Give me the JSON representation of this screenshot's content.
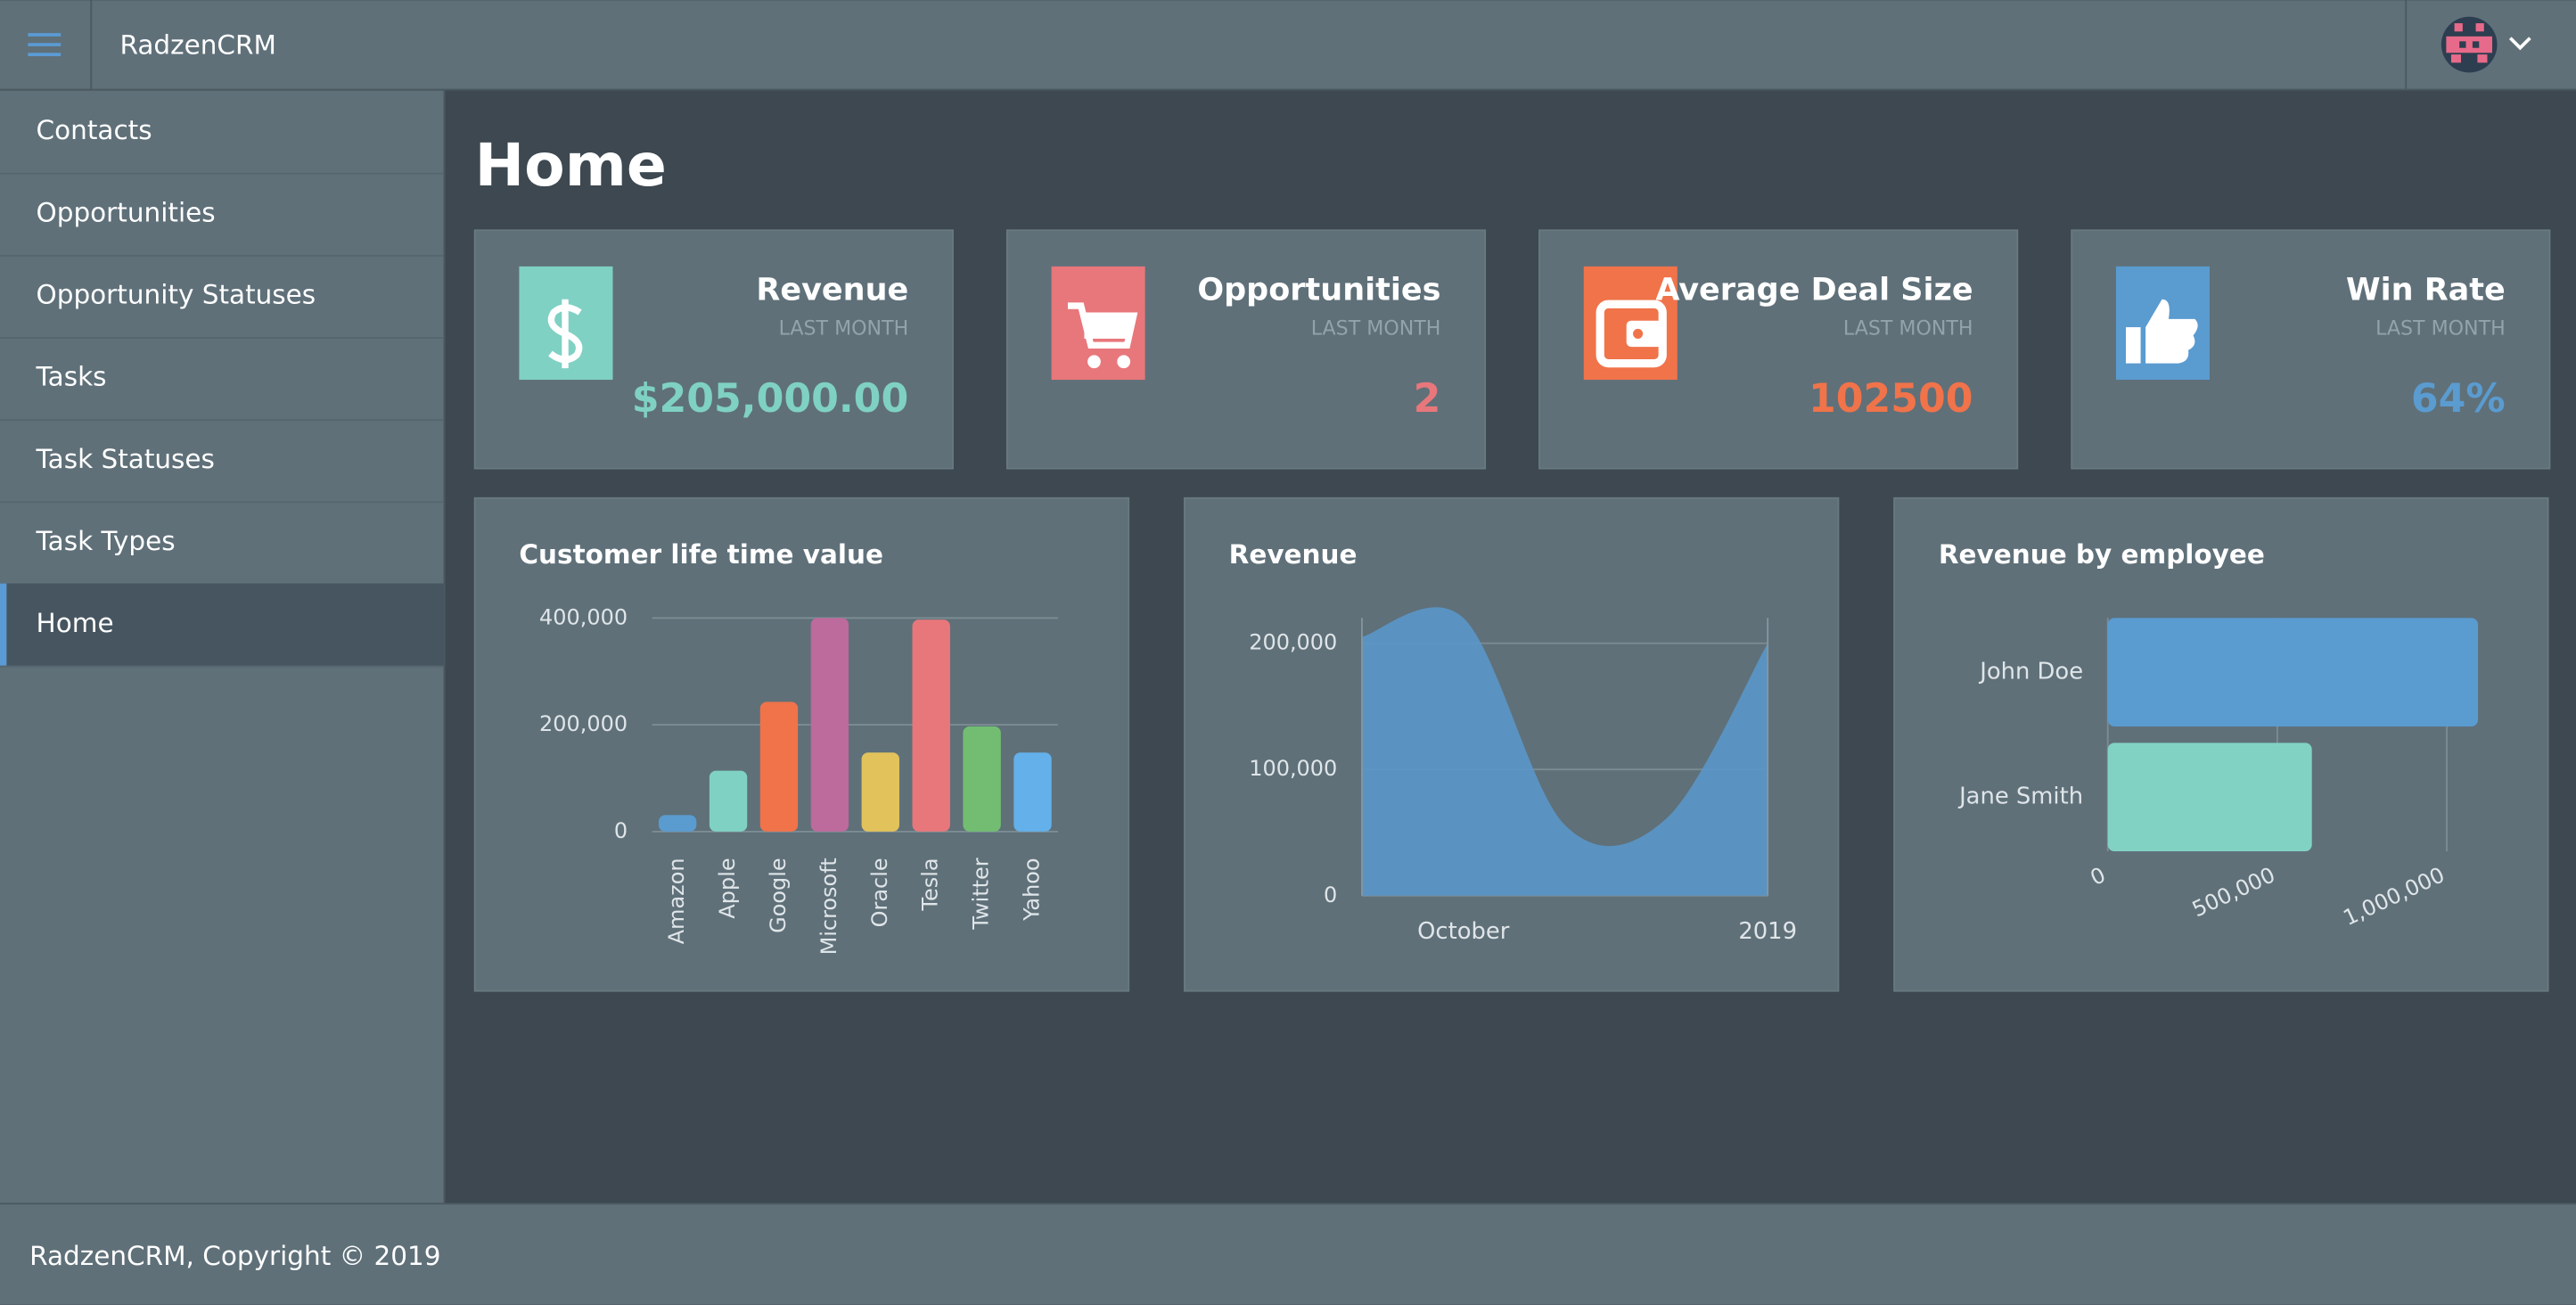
{
  "header": {
    "brand": "RadzenCRM"
  },
  "nav": [
    {
      "label": "Contacts"
    },
    {
      "label": "Opportunities"
    },
    {
      "label": "Opportunity Statuses"
    },
    {
      "label": "Tasks"
    },
    {
      "label": "Task Statuses"
    },
    {
      "label": "Task Types"
    },
    {
      "label": "Home",
      "active": true
    }
  ],
  "page_title": "Home",
  "cards": [
    {
      "title": "Revenue",
      "subtitle": "LAST MONTH",
      "value": "$205,000.00",
      "color": "#7fd1c3"
    },
    {
      "title": "Opportunities",
      "subtitle": "LAST MONTH",
      "value": "2",
      "color": "#e8777b"
    },
    {
      "title": "Average Deal Size",
      "subtitle": "LAST MONTH",
      "value": "102500",
      "color": "#f0734a"
    },
    {
      "title": "Win Rate",
      "subtitle": "LAST MONTH",
      "value": "64%",
      "color": "#5a9bd0"
    }
  ],
  "charts": [
    {
      "type": "bar",
      "title": "Customer life time value",
      "categories": [
        "Amazon",
        "Apple",
        "Google",
        "Microsoft",
        "Oracle",
        "Tesla",
        "Twitter",
        "Yahoo"
      ],
      "values": [
        31000,
        114000,
        243000,
        400000,
        148000,
        397000,
        197000,
        148000
      ],
      "colors": [
        "#5a9bd0",
        "#7fd1c3",
        "#f0734a",
        "#bd6a9c",
        "#e2c25b",
        "#e8777b",
        "#72bd72",
        "#63b0ea"
      ],
      "ylim": [
        0,
        400000
      ],
      "yticks": [
        0,
        {
          "value": 200000,
          "label": "200,000"
        },
        {
          "value": 400000,
          "label": "400,000"
        }
      ],
      "grid": true
    },
    {
      "type": "area",
      "title": "Revenue",
      "categories": [
        null,
        "October",
        null,
        null,
        "2019"
      ],
      "values": [
        205000,
        220000,
        56000,
        61000,
        200000
      ],
      "color": "#5a96c8",
      "ylim": [
        0,
        220000
      ],
      "yticks": [
        0,
        {
          "value": 100000,
          "label": "100,000"
        },
        {
          "value": 200000,
          "label": "200,000"
        }
      ],
      "grid": true
    },
    {
      "type": "hbar",
      "title": "Revenue by employee",
      "categories": [
        "John Doe",
        "Jane Smith"
      ],
      "values": [
        1092000,
        602000
      ],
      "colors": [
        "#5a9bd0",
        "#82d2c4"
      ],
      "xlim": [
        0,
        1100000
      ],
      "xticks": [
        0,
        {
          "value": 500000,
          "label": "500,000"
        },
        {
          "value": 1000000,
          "label": "1,000,000"
        }
      ],
      "grid": true
    }
  ],
  "footer": "RadzenCRM, Copyright © 2019"
}
